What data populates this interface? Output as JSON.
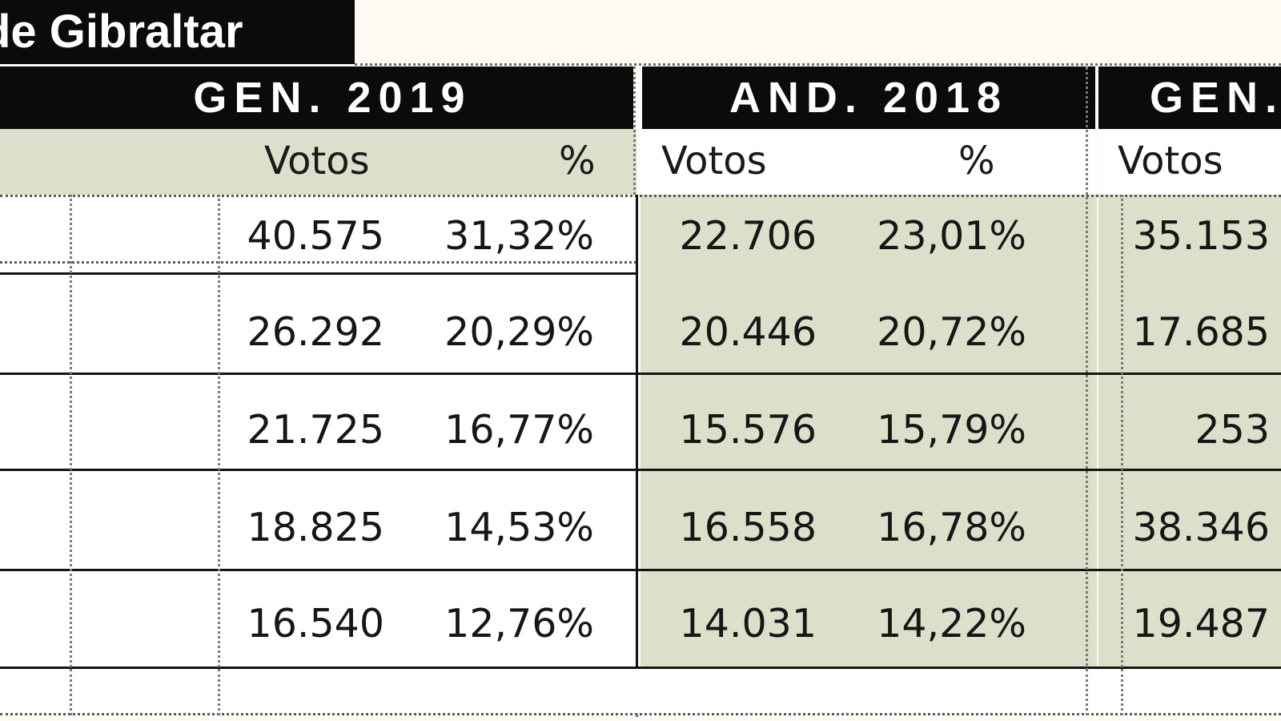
{
  "title": "de Gibraltar",
  "sections": [
    {
      "label": "GEN. 2019"
    },
    {
      "label": "AND. 2018"
    },
    {
      "label": "GEN."
    }
  ],
  "col_headers": {
    "votos": "Votos",
    "pct": "%"
  },
  "rows": [
    {
      "gen2019_votos": "40.575",
      "gen2019_pct": "31,32%",
      "and2018_votos": "22.706",
      "and2018_pct": "23,01%",
      "gen3_votos": "35.153"
    },
    {
      "gen2019_votos": "26.292",
      "gen2019_pct": "20,29%",
      "and2018_votos": "20.446",
      "and2018_pct": "20,72%",
      "gen3_votos": "17.685"
    },
    {
      "gen2019_votos": "21.725",
      "gen2019_pct": "16,77%",
      "and2018_votos": "15.576",
      "and2018_pct": "15,79%",
      "gen3_votos": "253"
    },
    {
      "gen2019_votos": "18.825",
      "gen2019_pct": "14,53%",
      "and2018_votos": "16.558",
      "and2018_pct": "16,78%",
      "gen3_votos": "38.346"
    },
    {
      "gen2019_votos": "16.540",
      "gen2019_pct": "12,76%",
      "and2018_votos": "14.031",
      "and2018_pct": "14,22%",
      "gen3_votos": "19.487"
    }
  ],
  "colors": {
    "header_bg": "#0b0b0b",
    "shade": "#dcdfca",
    "paper": "#fdfbf4"
  }
}
